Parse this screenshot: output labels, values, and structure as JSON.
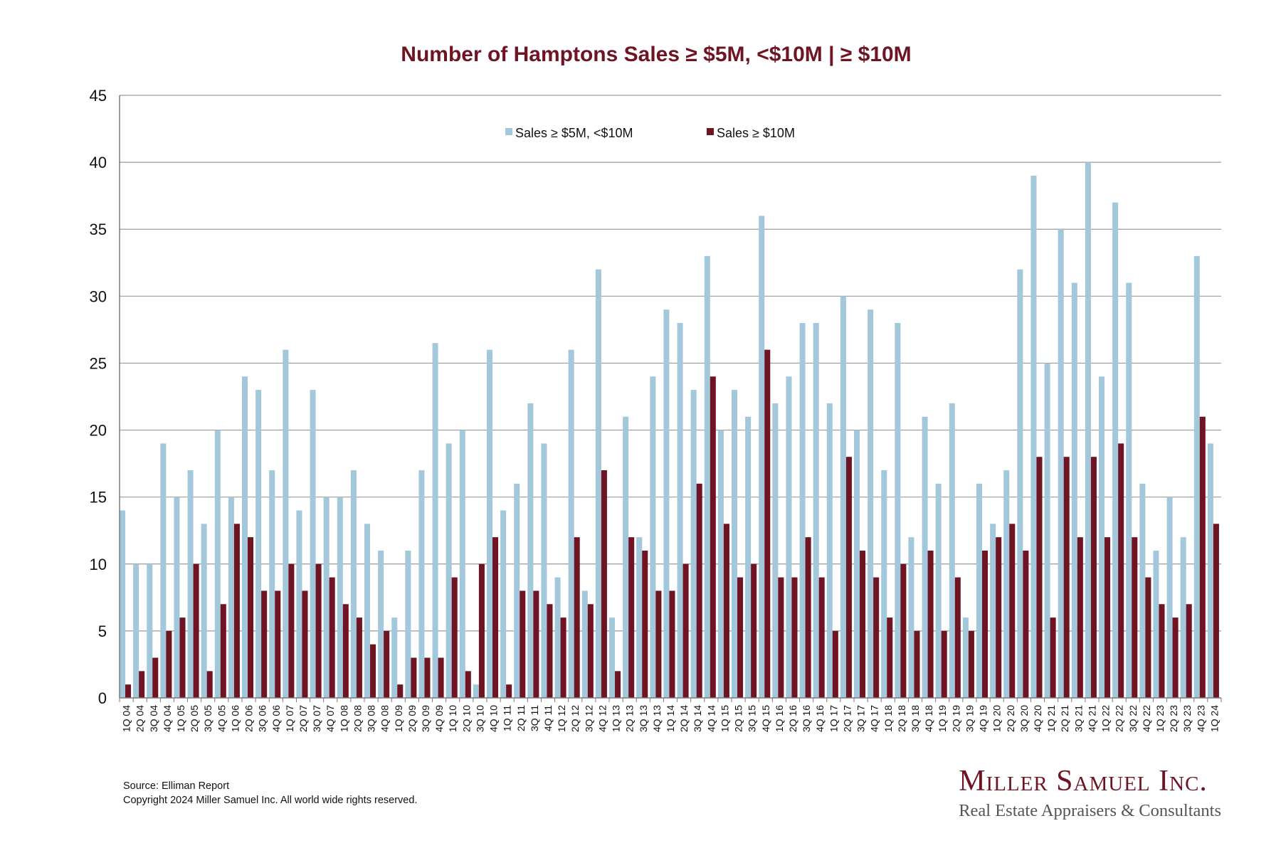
{
  "chart_data": {
    "type": "bar",
    "title": "Number of Hamptons Sales ≥ $5M, <$10M | ≥ $10M",
    "xlabel": "",
    "ylabel": "",
    "ylim": [
      0,
      45
    ],
    "yticks": [
      0,
      5,
      10,
      15,
      20,
      25,
      30,
      35,
      40,
      45
    ],
    "grid": true,
    "legend_position": "top-center",
    "categories": [
      "1Q 04",
      "2Q 04",
      "3Q 04",
      "4Q 04",
      "1Q 05",
      "2Q 05",
      "3Q 05",
      "4Q 05",
      "1Q 06",
      "2Q 06",
      "3Q 06",
      "4Q 06",
      "1Q 07",
      "2Q 07",
      "3Q 07",
      "4Q 07",
      "1Q 08",
      "2Q 08",
      "3Q 08",
      "4Q 08",
      "1Q 09",
      "2Q 09",
      "3Q 09",
      "4Q 09",
      "1Q 10",
      "2Q 10",
      "3Q 10",
      "4Q 10",
      "1Q 11",
      "2Q 11",
      "3Q 11",
      "4Q 11",
      "1Q 12",
      "2Q 12",
      "3Q 12",
      "4Q 12",
      "1Q 13",
      "2Q 13",
      "3Q 13",
      "4Q 13",
      "1Q 14",
      "2Q 14",
      "3Q 14",
      "4Q 14",
      "1Q 15",
      "2Q 15",
      "3Q 15",
      "4Q 15",
      "1Q 16",
      "2Q 16",
      "3Q 16",
      "4Q 16",
      "1Q 17",
      "2Q 17",
      "3Q 17",
      "4Q 17",
      "1Q 18",
      "2Q 18",
      "3Q 18",
      "4Q 18",
      "1Q 19",
      "2Q 19",
      "3Q 19",
      "4Q 19",
      "1Q 20",
      "2Q 20",
      "3Q 20",
      "4Q 20",
      "1Q 21",
      "2Q 21",
      "3Q 21",
      "4Q 21",
      "1Q 22",
      "2Q 22",
      "3Q 22",
      "4Q 22",
      "1Q 23",
      "2Q 23",
      "3Q 23",
      "4Q 23",
      "1Q 24"
    ],
    "series": [
      {
        "name": "Sales ≥ $5M, <$10M",
        "color": "#a3c8dc",
        "values": [
          14,
          10,
          10,
          19,
          15,
          17,
          13,
          20,
          15,
          24,
          23,
          17,
          26,
          14,
          23,
          15,
          15,
          17,
          13,
          11,
          6,
          11,
          17,
          26.5,
          19,
          20,
          1,
          26,
          14,
          16,
          22,
          19,
          9,
          26,
          8,
          32,
          6,
          21,
          12,
          24,
          29,
          28,
          23,
          33,
          20,
          23,
          21,
          36,
          22,
          24,
          28,
          28,
          22,
          30,
          20,
          29,
          17,
          28,
          12,
          21,
          16,
          22,
          6,
          16,
          13,
          17,
          32,
          39,
          25,
          35,
          31,
          40,
          24,
          37,
          31,
          16,
          11,
          15,
          12,
          33,
          19
        ]
      },
      {
        "name": "Sales ≥ $10M",
        "color": "#6e1423",
        "values": [
          1,
          2,
          3,
          5,
          6,
          10,
          2,
          7,
          13,
          12,
          8,
          8,
          10,
          8,
          10,
          9,
          7,
          6,
          4,
          5,
          1,
          3,
          3,
          3,
          9,
          2,
          10,
          12,
          1,
          8,
          8,
          7,
          6,
          12,
          7,
          17,
          2,
          12,
          11,
          8,
          8,
          10,
          16,
          24,
          13,
          9,
          10,
          26,
          9,
          9,
          12,
          9,
          5,
          18,
          11,
          9,
          6,
          10,
          5,
          11,
          5,
          9,
          5,
          11,
          12,
          13,
          11,
          18,
          6,
          18,
          12,
          18,
          12,
          19,
          12,
          9,
          7,
          6,
          7,
          21,
          13
        ]
      }
    ]
  },
  "footer": {
    "source": "Source: Elliman Report",
    "copyright": "Copyright 2024 Miller Samuel Inc.  All world wide rights reserved."
  },
  "brand": {
    "name": "Miller Samuel Inc.",
    "tagline": "Real Estate Appraisers & Consultants"
  }
}
